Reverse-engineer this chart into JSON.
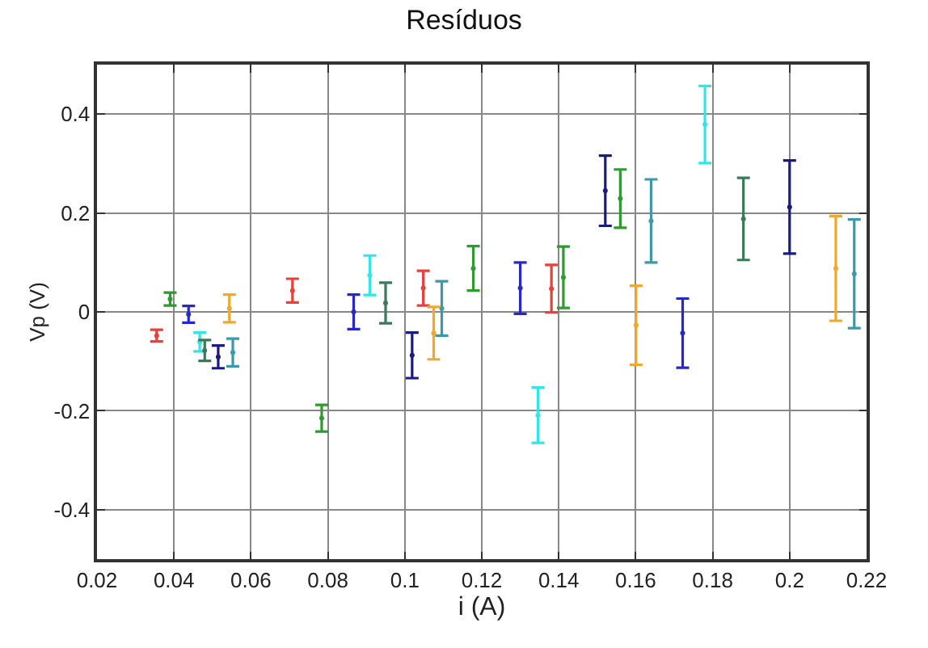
{
  "chart_data": {
    "type": "scatter",
    "title": "Resíduos",
    "xlabel": "i (A)",
    "ylabel": "Vp (V)",
    "grid": true,
    "series": [
      {
        "color": "#e8413c",
        "x": [
          0.0355,
          0.0708,
          0.1048,
          0.1381
        ],
        "values": [
          -0.048,
          0.043,
          0.048,
          0.047
        ],
        "errors": [
          0.012,
          0.024,
          0.035,
          0.048
        ]
      },
      {
        "color": "#2e9b2e",
        "x": [
          0.039,
          0.0784,
          0.1178,
          0.1412,
          0.156
        ],
        "values": [
          0.026,
          -0.215,
          0.088,
          0.07,
          0.229
        ],
        "errors": [
          0.013,
          0.027,
          0.045,
          0.062,
          0.059
        ]
      },
      {
        "color": "#2828c8",
        "x": [
          0.0438,
          0.0867,
          0.13,
          0.1722
        ],
        "values": [
          -0.005,
          0,
          0.048,
          -0.043
        ],
        "errors": [
          0.017,
          0.035,
          0.052,
          0.07
        ]
      },
      {
        "color": "#33e6e6",
        "x": [
          0.0467,
          0.0909,
          0.1346,
          0.178
        ],
        "values": [
          -0.061,
          0.074,
          -0.209,
          0.379
        ],
        "errors": [
          0.019,
          0.04,
          0.056,
          0.078
        ]
      },
      {
        "color": "#3a7a5a",
        "x": [
          0.048,
          0.095,
          0.188
        ],
        "values": [
          -0.078,
          0.018,
          0.188
        ],
        "errors": [
          0.021,
          0.041,
          0.083
        ]
      },
      {
        "color": "#1a1a80",
        "x": [
          0.0515,
          0.1019,
          0.1521,
          0.2
        ],
        "values": [
          -0.091,
          -0.088,
          0.245,
          0.212
        ],
        "errors": [
          0.023,
          0.046,
          0.071,
          0.094
        ]
      },
      {
        "color": "#3a9aaa",
        "x": [
          0.0553,
          0.1096,
          0.164,
          0.2168
        ],
        "values": [
          -0.082,
          0.007,
          0.184,
          0.077
        ],
        "errors": [
          0.028,
          0.055,
          0.084,
          0.11
        ]
      },
      {
        "color": "#f0a830",
        "x": [
          0.0544,
          0.1075,
          0.1601,
          0.212
        ],
        "values": [
          0.007,
          -0.043,
          -0.027,
          0.088
        ],
        "errors": [
          0.028,
          0.053,
          0.08,
          0.106
        ]
      }
    ],
    "xlim": [
      0.02,
      0.22
    ],
    "xticks": [
      0.02,
      0.04,
      0.06,
      0.08,
      0.1,
      0.12,
      0.14,
      0.16,
      0.18,
      0.2,
      0.22
    ],
    "ylim": [
      -0.5,
      0.5
    ],
    "yticks": [
      -0.4,
      -0.2,
      0,
      0.2,
      0.4
    ]
  }
}
